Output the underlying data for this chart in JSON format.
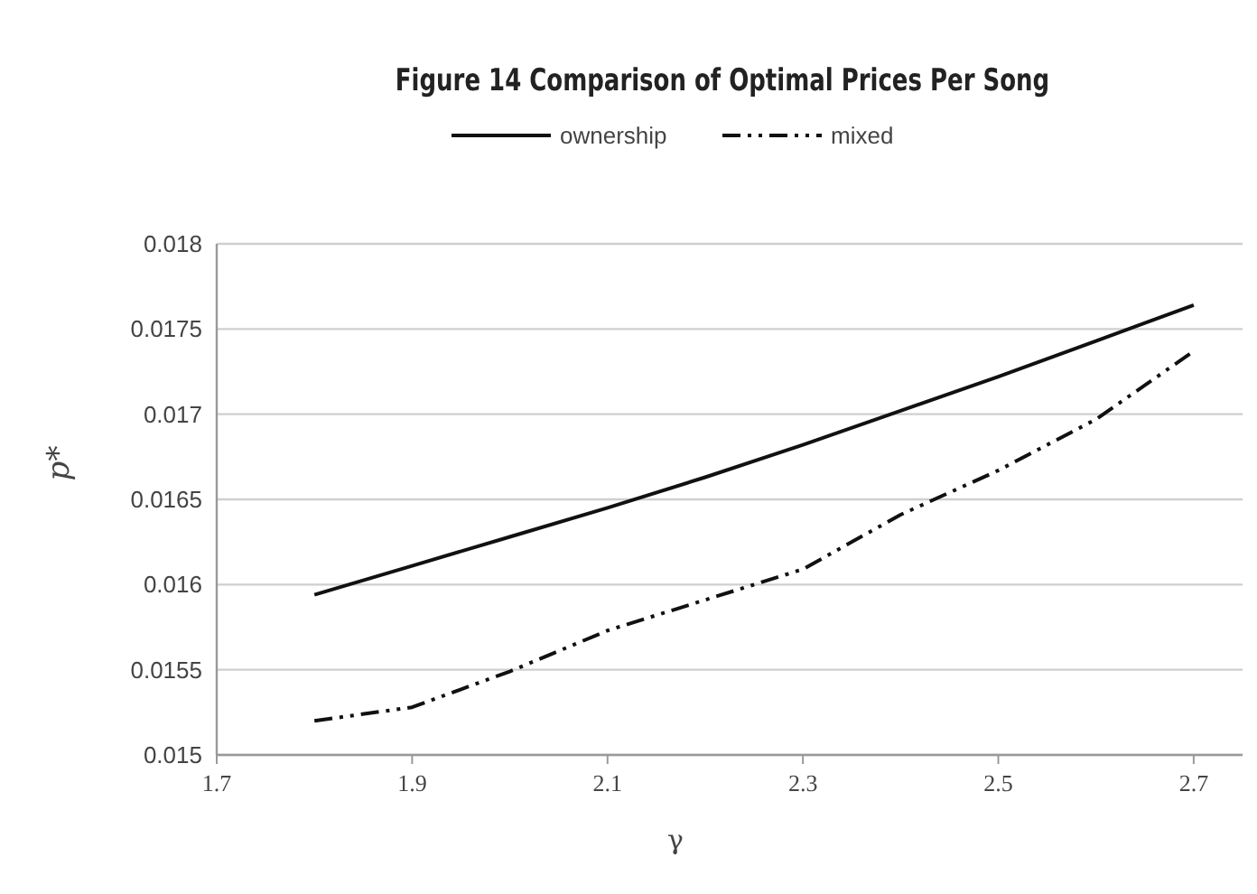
{
  "chart_data": {
    "type": "line",
    "title": "Figure 14   Comparison of Optimal Prices Per Song",
    "xlabel": "γ",
    "ylabel": "p*",
    "x": [
      1.8,
      1.9,
      2.0,
      2.1,
      2.2,
      2.3,
      2.4,
      2.5,
      2.6,
      2.7
    ],
    "series": [
      {
        "name": "ownership",
        "color": "#111111",
        "line_style": "solid",
        "values": [
          0.01594,
          0.01611,
          0.01628,
          0.01645,
          0.01663,
          0.01682,
          0.01702,
          0.01722,
          0.01743,
          0.01764
        ]
      },
      {
        "name": "mixed",
        "color": "#111111",
        "line_style": "dashdotdot",
        "values": [
          0.0152,
          0.01528,
          0.01549,
          0.01573,
          0.01591,
          0.01609,
          0.01641,
          0.01667,
          0.01697,
          0.01737
        ]
      }
    ],
    "xlim": [
      1.7,
      2.75
    ],
    "xticks": [
      1.7,
      1.9,
      2.1,
      2.3,
      2.5,
      2.7
    ],
    "ylim": [
      0.015,
      0.018
    ],
    "yticks": [
      0.015,
      0.0155,
      0.016,
      0.0165,
      0.017,
      0.0175,
      0.018
    ],
    "grid": "y",
    "legend": "top"
  }
}
